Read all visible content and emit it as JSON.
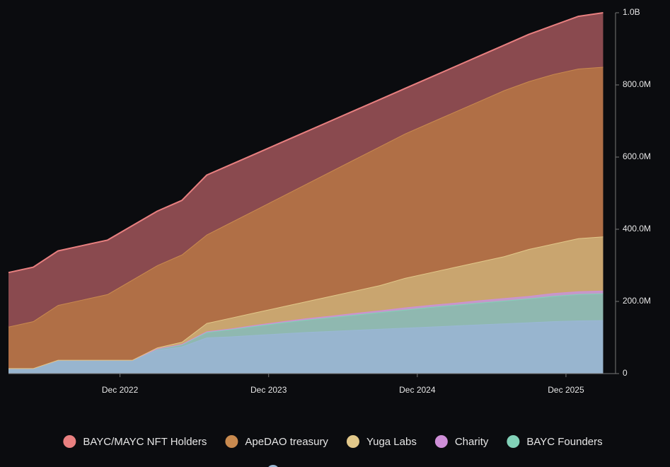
{
  "chart_data": {
    "type": "area",
    "stacked": true,
    "x": [
      "2022-03",
      "2022-05",
      "2022-07",
      "2022-09",
      "2022-11",
      "2023-01",
      "2023-03",
      "2023-05",
      "2023-07",
      "2023-09",
      "2023-11",
      "2024-01",
      "2024-03",
      "2024-05",
      "2024-07",
      "2024-09",
      "2024-11",
      "2025-01",
      "2025-03",
      "2025-05",
      "2025-07",
      "2025-09",
      "2025-11",
      "2026-01",
      "2026-03"
    ],
    "xlim": [
      "2022-03",
      "2026-04"
    ],
    "xticks": [
      {
        "value": "2022-12",
        "label": "Dec 2022"
      },
      {
        "value": "2023-12",
        "label": "Dec 2023"
      },
      {
        "value": "2024-12",
        "label": "Dec 2024"
      },
      {
        "value": "2025-12",
        "label": "Dec 2025"
      }
    ],
    "ylim": [
      0,
      1000
    ],
    "yticks": [
      0,
      {
        "value": 200,
        "label": "200.0M"
      },
      {
        "value": 400,
        "label": "400.0M"
      },
      {
        "value": 600,
        "label": "600.0M"
      },
      {
        "value": 800,
        "label": "800.0M"
      },
      {
        "value": 1000,
        "label": "1.0B"
      }
    ],
    "legend": "bottom",
    "series": [
      {
        "color": "#9ab8d4",
        "fill": "#98b5cf",
        "values": [
          15,
          15,
          38,
          38,
          38,
          38,
          65,
          75,
          100,
          103,
          107,
          111,
          115,
          118,
          121,
          124,
          127,
          130,
          133,
          136,
          139,
          142,
          145,
          147,
          148
        ]
      },
      {
        "name": "BAYC Founders",
        "color": "#82d2b8",
        "fill": "#8fb8b0",
        "values": [
          0,
          0,
          0,
          0,
          0,
          0,
          3,
          6,
          15,
          20,
          25,
          30,
          34,
          38,
          42,
          46,
          50,
          54,
          57,
          60,
          63,
          66,
          70,
          73,
          74
        ]
      },
      {
        "name": "Charity",
        "color": "#cf8fd8",
        "fill": "#c39ac8",
        "values": [
          0,
          0,
          0,
          0,
          0,
          0,
          1,
          1,
          2,
          2,
          3,
          3,
          4,
          4,
          5,
          5,
          6,
          6,
          6,
          7,
          7,
          7,
          8,
          8,
          8
        ]
      },
      {
        "name": "Yuga Labs",
        "color": "#e2c88a",
        "fill": "#c9a56f",
        "values": [
          0,
          0,
          0,
          0,
          0,
          0,
          3,
          6,
          23,
          30,
          35,
          41,
          47,
          55,
          62,
          70,
          82,
          90,
          99,
          107,
          116,
          130,
          137,
          147,
          150
        ]
      },
      {
        "name": "ApeDAO treasury",
        "color": "#c98a4f",
        "fill": "#b06f46",
        "values": [
          115,
          130,
          152,
          167,
          182,
          222,
          228,
          242,
          245,
          265,
          285,
          305,
          325,
          345,
          365,
          385,
          400,
          415,
          430,
          445,
          460,
          465,
          470,
          470,
          470
        ]
      },
      {
        "name": "BAYC/MAYC NFT Holders",
        "color": "#e98080",
        "fill": "#8a4a4f",
        "values": [
          150,
          150,
          150,
          150,
          150,
          150,
          150,
          150,
          165,
          160,
          155,
          150,
          145,
          140,
          135,
          130,
          125,
          125,
          125,
          125,
          125,
          130,
          135,
          145,
          150
        ]
      }
    ]
  }
}
